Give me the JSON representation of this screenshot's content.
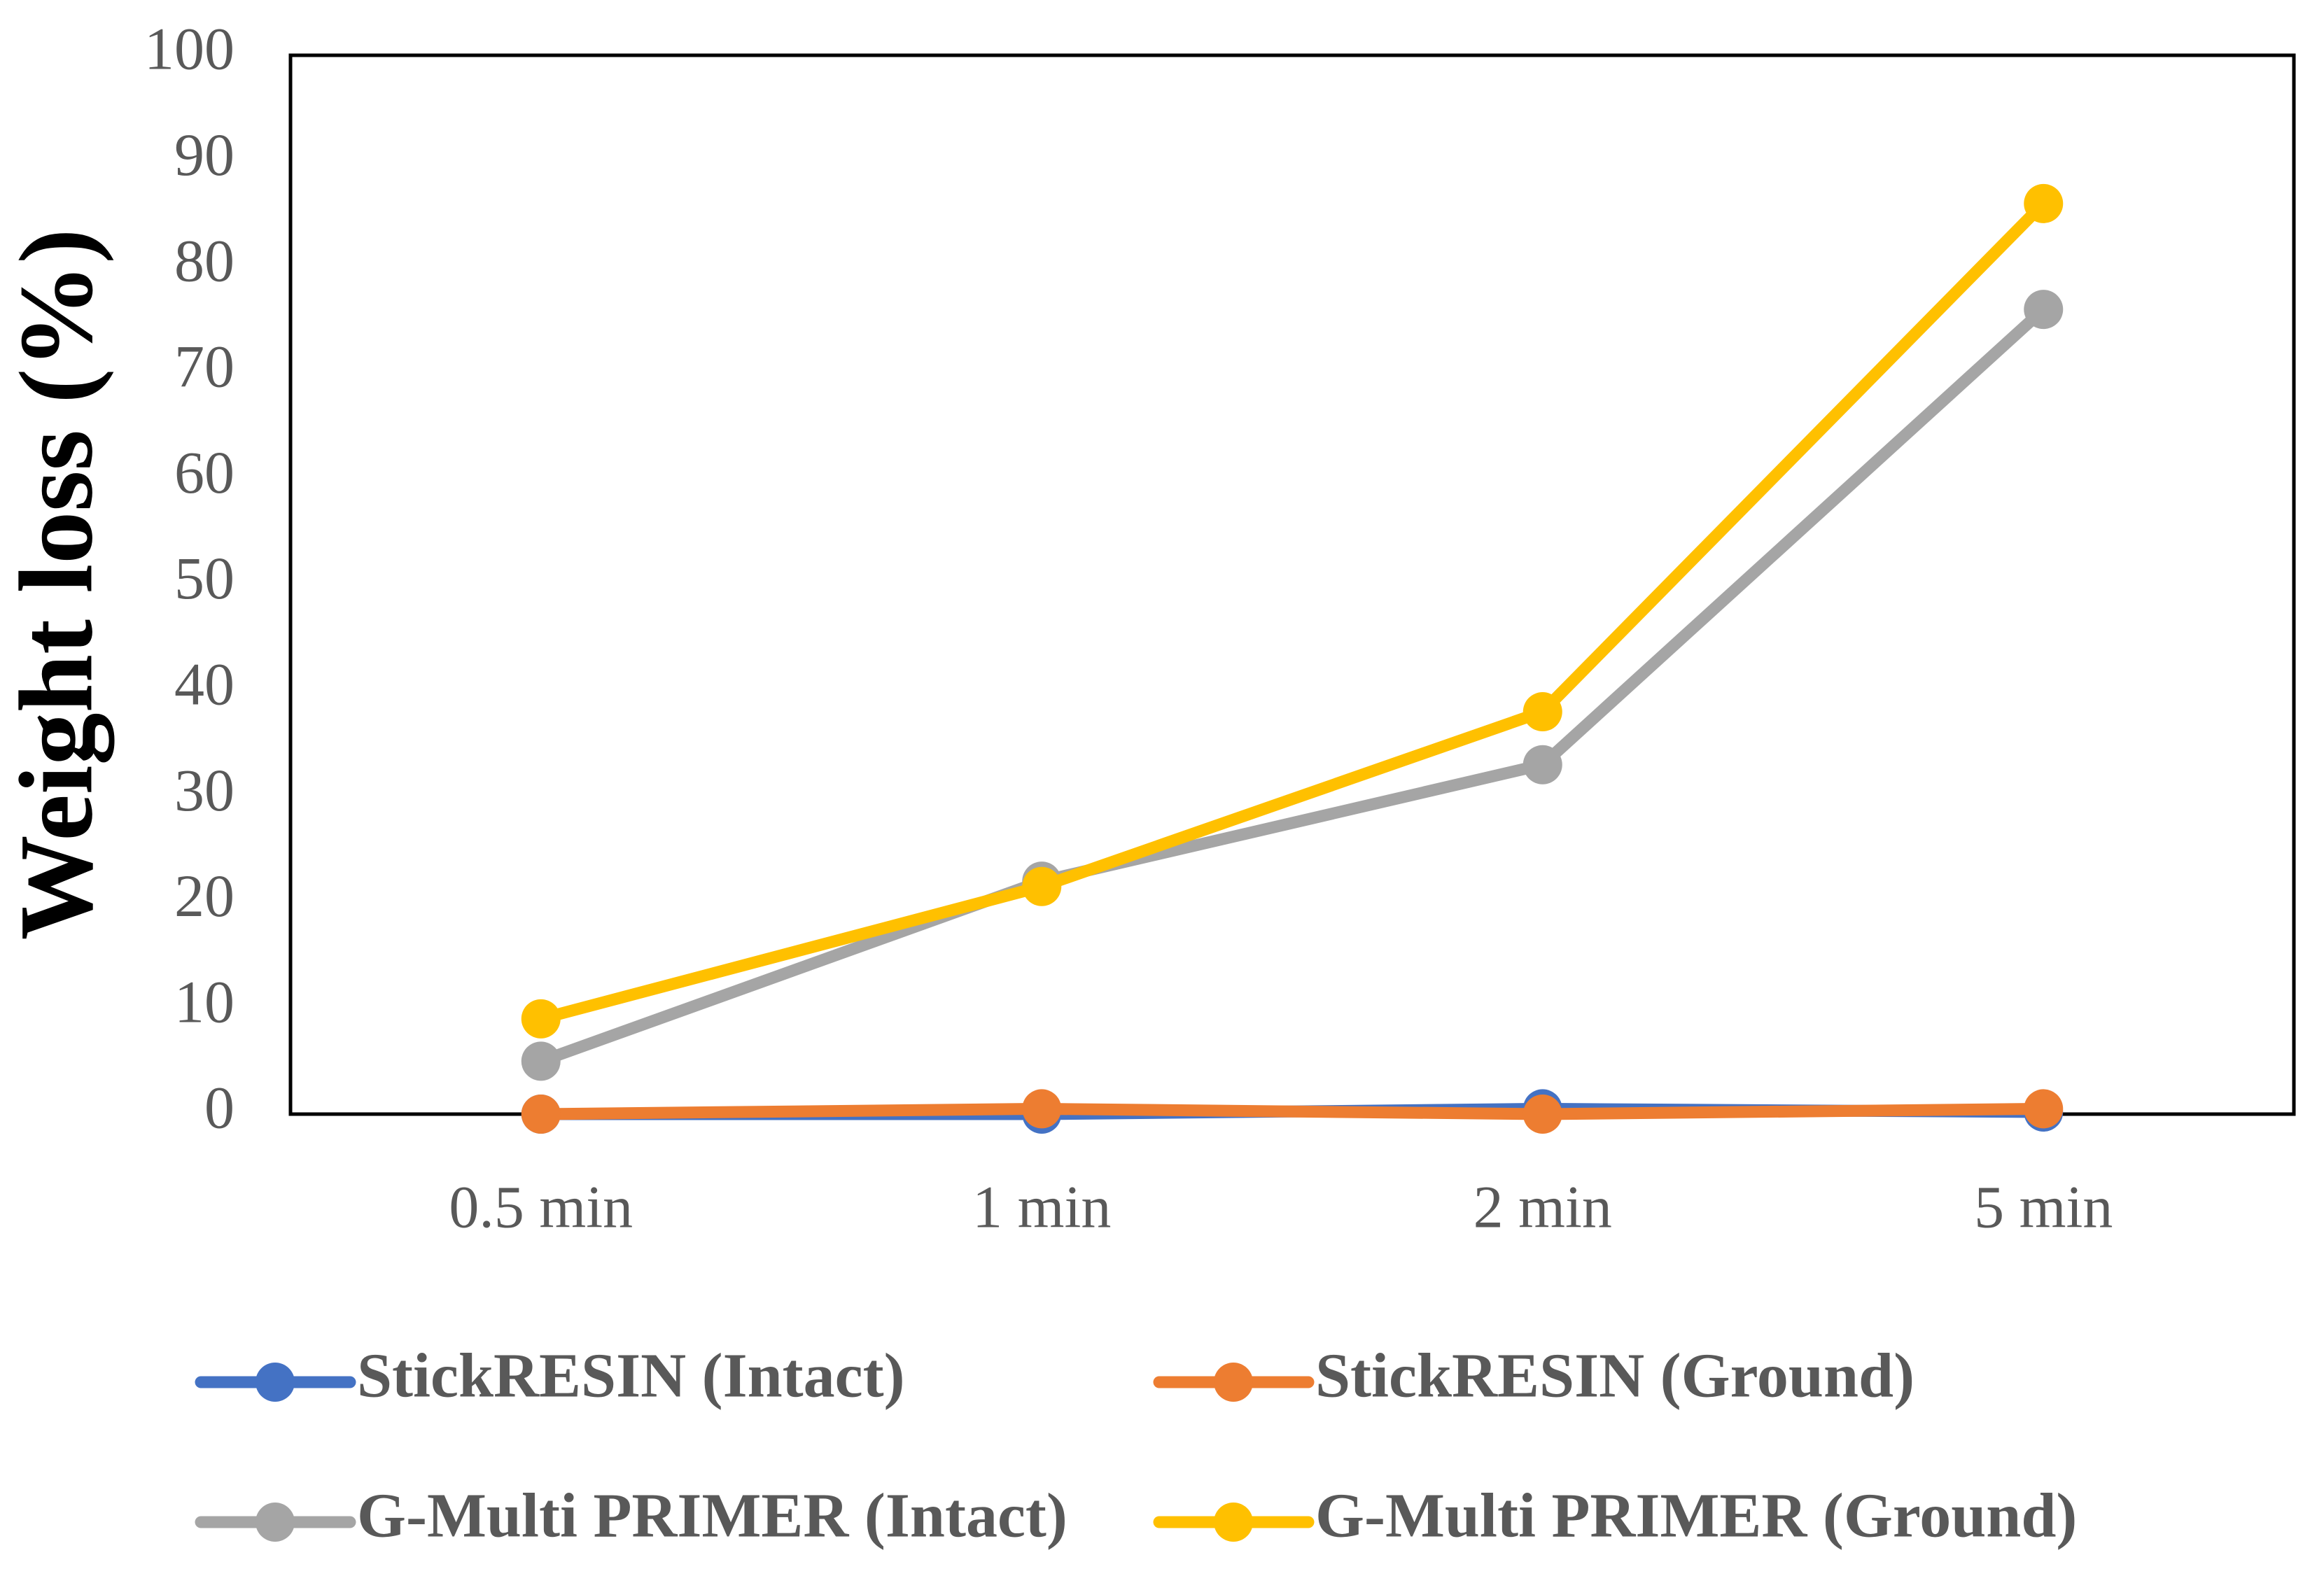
{
  "chart_data": {
    "type": "line",
    "y_label": "Weight loss (%)",
    "categories": [
      "0.5 min",
      "1 min",
      "2 min",
      "5 min"
    ],
    "series": [
      {
        "name": "StickRESIN (Intact)",
        "color": "#4472c4",
        "values": [
          0,
          0,
          0.5,
          0.2
        ]
      },
      {
        "name": "StickRESIN (Ground)",
        "color": "#ed7d31",
        "values": [
          0,
          0.5,
          0,
          0.5
        ]
      },
      {
        "name": "G-Multi PRIMER (Intact)",
        "color": "#a5a5a5",
        "values": [
          5,
          22,
          33,
          76
        ]
      },
      {
        "name": "G-Multi PRIMER (Ground)",
        "color": "#ffc000",
        "values": [
          9,
          21.5,
          38,
          86
        ]
      }
    ],
    "ylim": [
      0,
      100
    ],
    "yticks": [
      0,
      10,
      20,
      30,
      40,
      50,
      60,
      70,
      80,
      90,
      100
    ],
    "grid": false
  }
}
